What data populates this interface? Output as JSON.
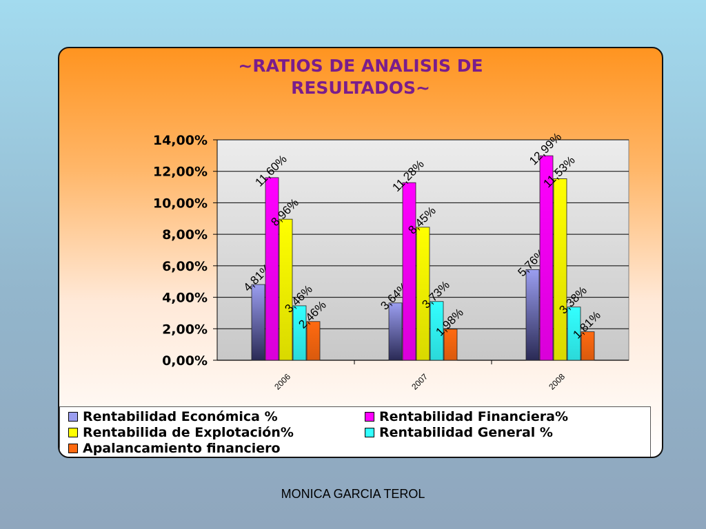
{
  "chart_data": {
    "type": "bar",
    "title_lines": [
      "~RATIOS DE ANALISIS DE",
      "RESULTADOS~"
    ],
    "categories": [
      "2006",
      "2007",
      "2008"
    ],
    "ylim": [
      0,
      14
    ],
    "y_ticks": [
      "0,00%",
      "2,00%",
      "4,00%",
      "6,00%",
      "8,00%",
      "10,00%",
      "12,00%",
      "14,00%"
    ],
    "grid": true,
    "legend_position": "bottom",
    "series": [
      {
        "name": "Rentabilidad Económica %",
        "values": [
          4.81,
          3.64,
          5.76
        ],
        "labels": [
          "4,81%",
          "3,64%",
          "5,76%"
        ],
        "color": "#9b9ef0"
      },
      {
        "name": "Rentabilidad Financiera%",
        "values": [
          11.6,
          11.28,
          12.99
        ],
        "labels": [
          "11,60%",
          "11,28%",
          "12,99%"
        ],
        "color": "#ff00ff"
      },
      {
        "name": "Rentabilida de Explotación%",
        "values": [
          8.96,
          8.45,
          11.53
        ],
        "labels": [
          "8,96%",
          "8,45%",
          "11,53%"
        ],
        "color": "#ffff00"
      },
      {
        "name": "Rentabilidad General %",
        "values": [
          3.46,
          3.73,
          3.38
        ],
        "labels": [
          "3,46%",
          "3,73%",
          "3,38%"
        ],
        "color": "#33ffff"
      },
      {
        "name": "Apalancamiento financiero",
        "values": [
          2.46,
          1.98,
          1.81
        ],
        "labels": [
          "2,46%",
          "1,98%",
          "1,81%"
        ],
        "color": "#ff6a10"
      }
    ]
  },
  "footer": "MONICA GARCIA TEROL"
}
